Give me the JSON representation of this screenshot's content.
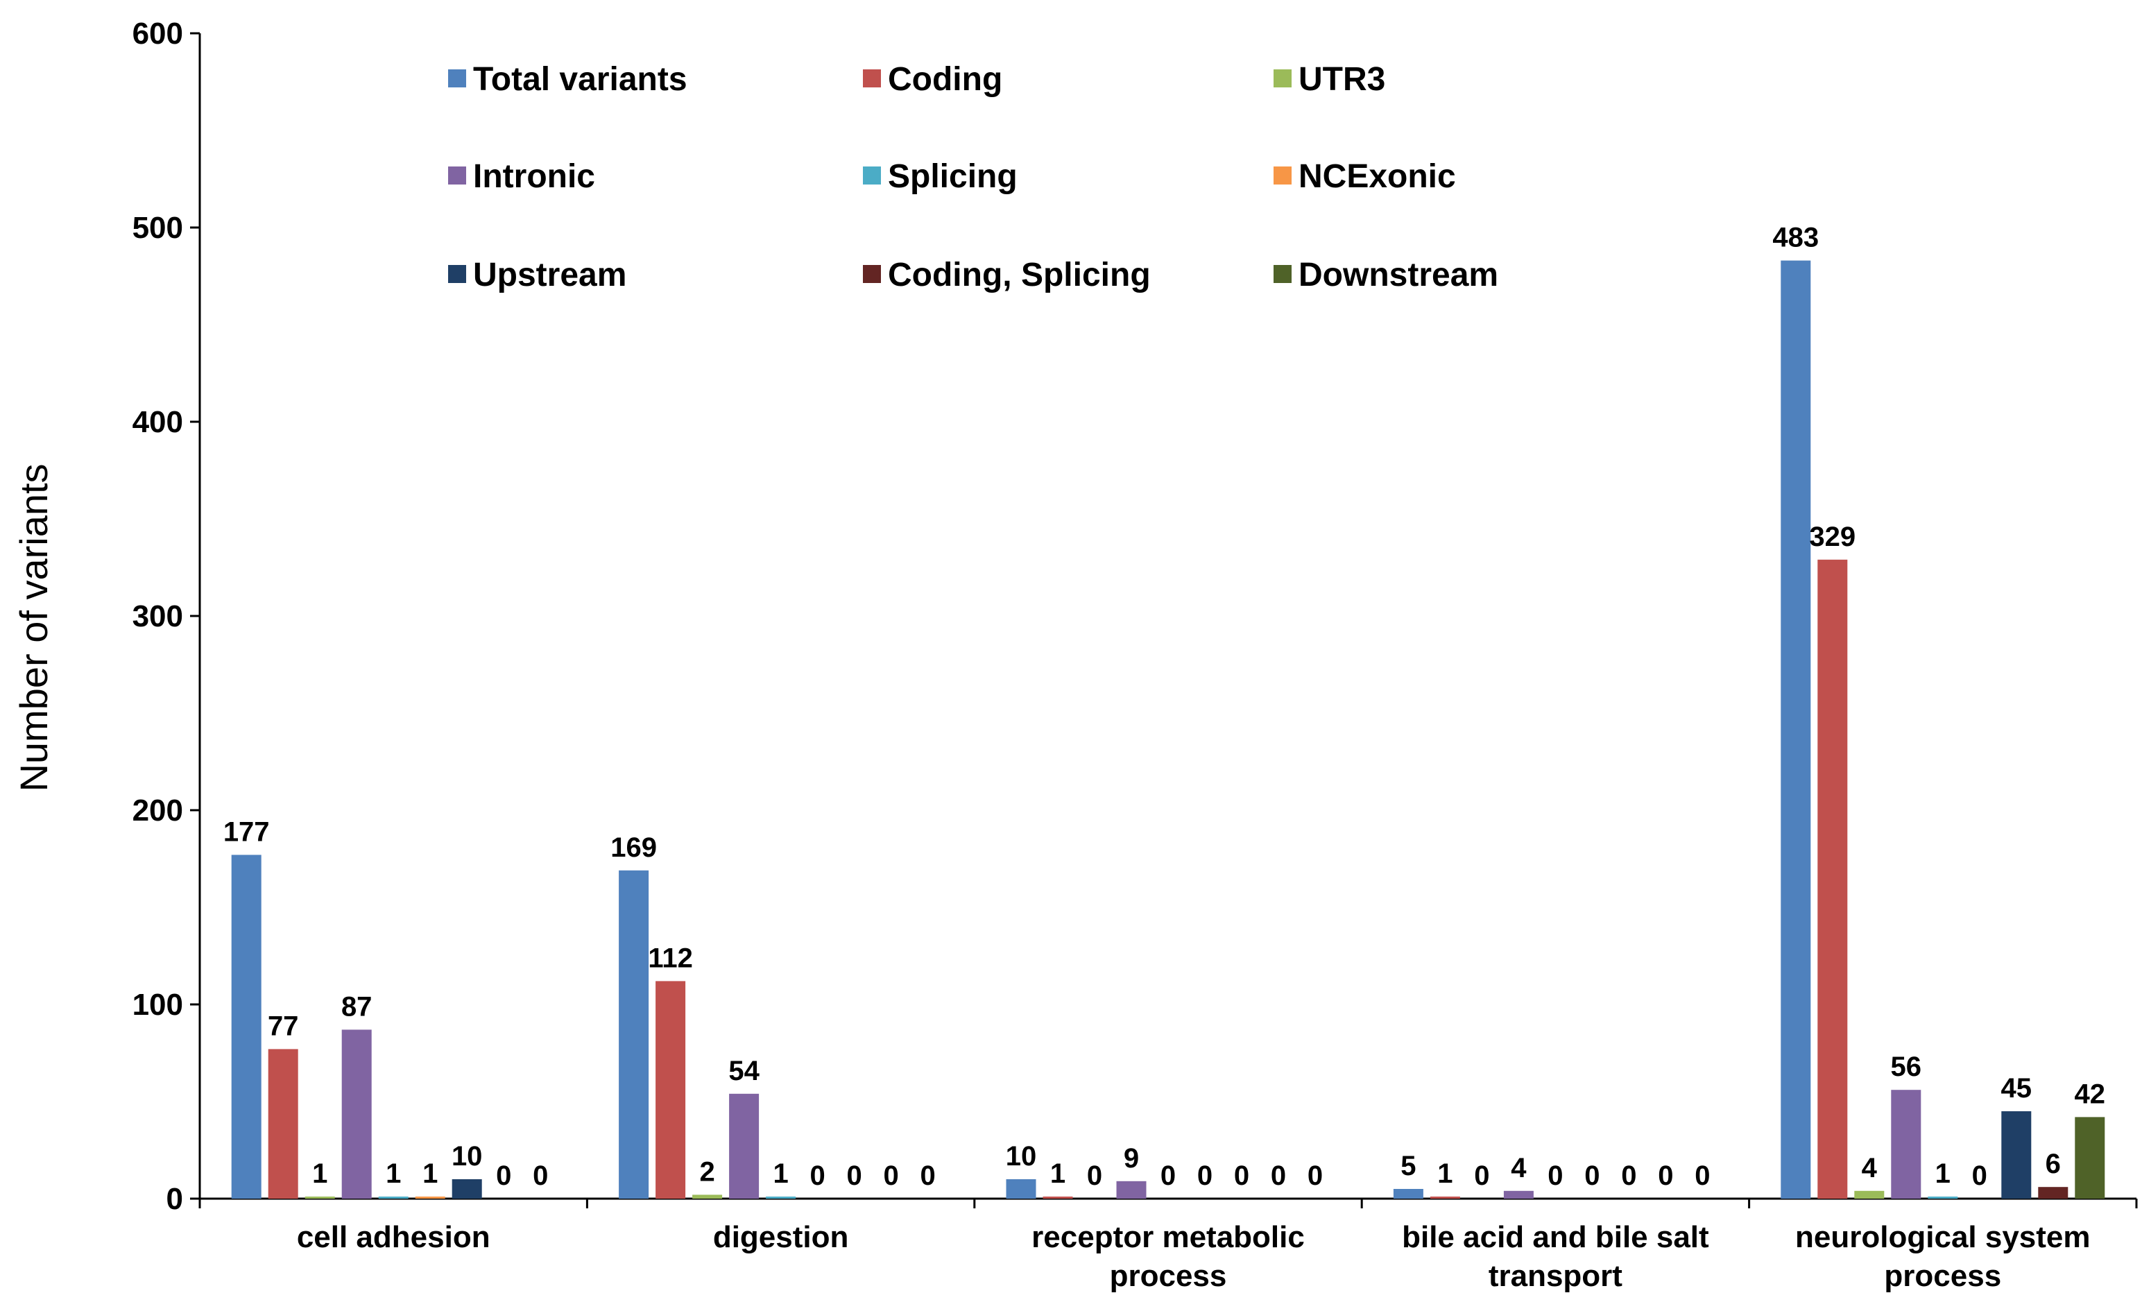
{
  "chart_data": {
    "type": "bar",
    "title": "",
    "xlabel": "",
    "ylabel": "Number of variants",
    "ylim": [
      0,
      600
    ],
    "yticks": [
      0,
      100,
      200,
      300,
      400,
      500,
      600
    ],
    "grid": false,
    "legend_position": "top-center",
    "categories": [
      [
        "cell adhesion"
      ],
      [
        "digestion"
      ],
      [
        "receptor metabolic",
        "process"
      ],
      [
        "bile acid and bile salt",
        "transport"
      ],
      [
        "neurological system",
        "process"
      ]
    ],
    "series": [
      {
        "name": "Total variants",
        "color": "#4F81BD",
        "values": [
          177,
          169,
          10,
          5,
          483
        ]
      },
      {
        "name": "Coding",
        "color": "#C0504D",
        "values": [
          77,
          112,
          1,
          1,
          329
        ]
      },
      {
        "name": "UTR3",
        "color": "#9BBB59",
        "values": [
          1,
          2,
          0,
          0,
          4
        ]
      },
      {
        "name": "Intronic",
        "color": "#8064A2",
        "values": [
          87,
          54,
          9,
          4,
          56
        ]
      },
      {
        "name": "Splicing",
        "color": "#4BACC6",
        "values": [
          1,
          1,
          0,
          0,
          1
        ]
      },
      {
        "name": "NCExonic",
        "color": "#F79646",
        "values": [
          1,
          0,
          0,
          0,
          0
        ]
      },
      {
        "name": "Upstream",
        "color": "#1F3F66",
        "values": [
          10,
          0,
          0,
          0,
          45
        ]
      },
      {
        "name": "Coding, Splicing",
        "color": "#632523",
        "values": [
          0,
          0,
          0,
          0,
          6
        ]
      },
      {
        "name": "Downstream",
        "color": "#4F6228",
        "values": [
          0,
          0,
          0,
          0,
          42
        ]
      }
    ],
    "labels_shown": [
      [
        "177",
        "77",
        "1",
        "87",
        "1",
        "1",
        "10",
        "0",
        "0"
      ],
      [
        "169",
        "112",
        "2",
        "54",
        "1",
        "0",
        "0",
        "0",
        "0"
      ],
      [
        "10",
        "1",
        "0",
        "9",
        "0",
        "0",
        "0",
        "0",
        "0"
      ],
      [
        "5",
        "1",
        "0",
        "4",
        "0",
        "0",
        "0",
        "0",
        "0"
      ],
      [
        "483",
        "329",
        "4",
        "56",
        "1",
        "0",
        "45",
        "6",
        "42"
      ]
    ]
  }
}
